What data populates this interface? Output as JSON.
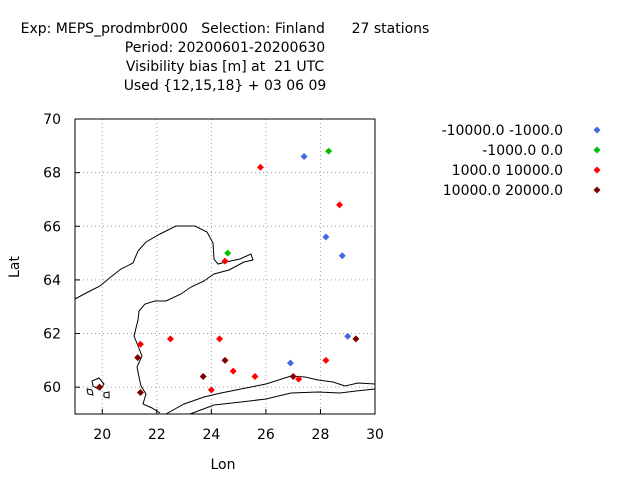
{
  "chart_data": {
    "type": "scatter",
    "title_lines": [
      "Exp: MEPS_prodmbr000   Selection: Finland      27 stations",
      "Period: 20200601-20200630",
      "Visibility bias [m] at  21 UTC",
      "Used {12,15,18} + 03 06 09"
    ],
    "xlabel": "Lon",
    "ylabel": "Lat",
    "xlim": [
      19,
      30
    ],
    "ylim": [
      59,
      70
    ],
    "x_ticks": [
      20,
      22,
      24,
      26,
      28,
      30
    ],
    "y_ticks": [
      60,
      62,
      64,
      66,
      68,
      70
    ],
    "grid": true,
    "legend_position": "right",
    "series": [
      {
        "name": "-10000.0 -1000.0",
        "color": "#4169e1",
        "points": [
          [
            27.4,
            68.6
          ],
          [
            28.2,
            65.6
          ],
          [
            28.8,
            64.9
          ],
          [
            29.0,
            61.9
          ],
          [
            26.9,
            60.9
          ]
        ]
      },
      {
        "name": "-1000.0 0.0",
        "color": "#00c000",
        "points": [
          [
            28.3,
            68.8
          ],
          [
            24.6,
            65.0
          ]
        ]
      },
      {
        "name": "1000.0 10000.0",
        "color": "#ff0000",
        "points": [
          [
            25.8,
            68.2
          ],
          [
            28.7,
            66.8
          ],
          [
            24.5,
            64.7
          ],
          [
            21.4,
            61.6
          ],
          [
            22.5,
            61.8
          ],
          [
            24.3,
            61.8
          ],
          [
            28.2,
            61.0
          ],
          [
            24.8,
            60.6
          ],
          [
            25.6,
            60.4
          ],
          [
            24.0,
            59.9
          ],
          [
            27.2,
            60.3
          ]
        ]
      },
      {
        "name": "10000.0 20000.0",
        "color": "#800000",
        "points": [
          [
            29.3,
            61.8
          ],
          [
            21.3,
            61.1
          ],
          [
            24.5,
            61.0
          ],
          [
            23.7,
            60.4
          ],
          [
            27.0,
            60.4
          ],
          [
            19.9,
            60.0
          ],
          [
            21.4,
            59.8
          ]
        ]
      }
    ]
  }
}
